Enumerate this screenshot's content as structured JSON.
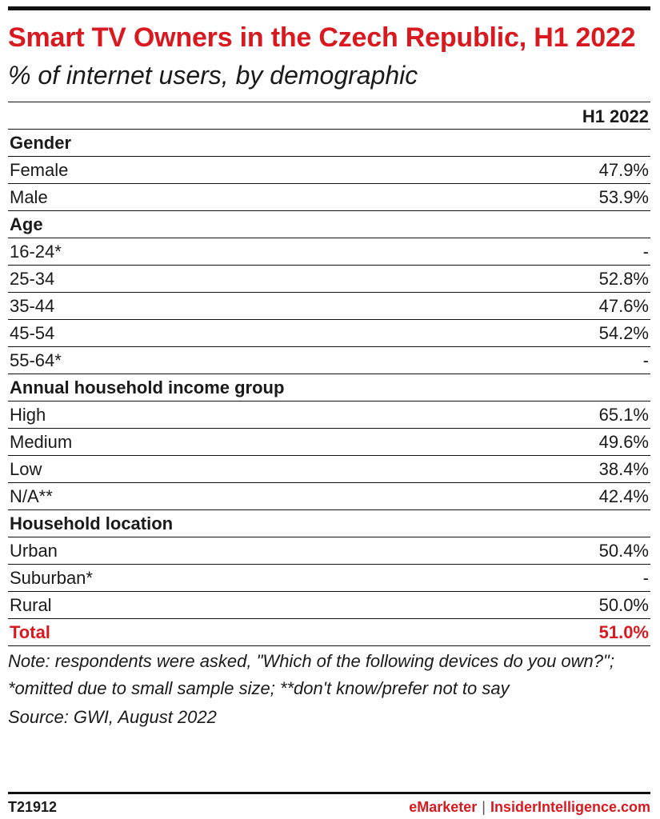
{
  "chart_data": {
    "type": "table",
    "title": "Smart TV Owners in the Czech Republic, H1 2022",
    "subtitle": "% of internet users, by demographic",
    "column_header": "H1 2022",
    "rows": [
      {
        "label": "Gender",
        "value": "",
        "group": true
      },
      {
        "label": "Female",
        "value": "47.9%"
      },
      {
        "label": "Male",
        "value": "53.9%"
      },
      {
        "label": "Age",
        "value": "",
        "group": true
      },
      {
        "label": "16-24*",
        "value": "-"
      },
      {
        "label": "25-34",
        "value": "52.8%"
      },
      {
        "label": "35-44",
        "value": "47.6%"
      },
      {
        "label": "45-54",
        "value": "54.2%"
      },
      {
        "label": "55-64*",
        "value": "-"
      },
      {
        "label": "Annual household income group",
        "value": "",
        "group": true
      },
      {
        "label": "High",
        "value": "65.1%"
      },
      {
        "label": "Medium",
        "value": "49.6%"
      },
      {
        "label": "Low",
        "value": "38.4%"
      },
      {
        "label": "N/A**",
        "value": "42.4%"
      },
      {
        "label": "Household location",
        "value": "",
        "group": true
      },
      {
        "label": "Urban",
        "value": "50.4%"
      },
      {
        "label": "Suburban*",
        "value": "-"
      },
      {
        "label": "Rural",
        "value": "50.0%"
      }
    ],
    "total": {
      "label": "Total",
      "value": "51.0%"
    }
  },
  "note": "Note: respondents were asked, \"Which of the following devices do you own?\"; *omitted due to small sample size; **don't know/prefer not to say",
  "source": "Source: GWI, August 2022",
  "footer": {
    "code": "T21912",
    "brand_emarketer": "eMarketer",
    "separator": "|",
    "brand_insider": "InsiderIntelligence.com"
  },
  "colors": {
    "accent": "#d9191f",
    "text": "#1a1a1a"
  }
}
